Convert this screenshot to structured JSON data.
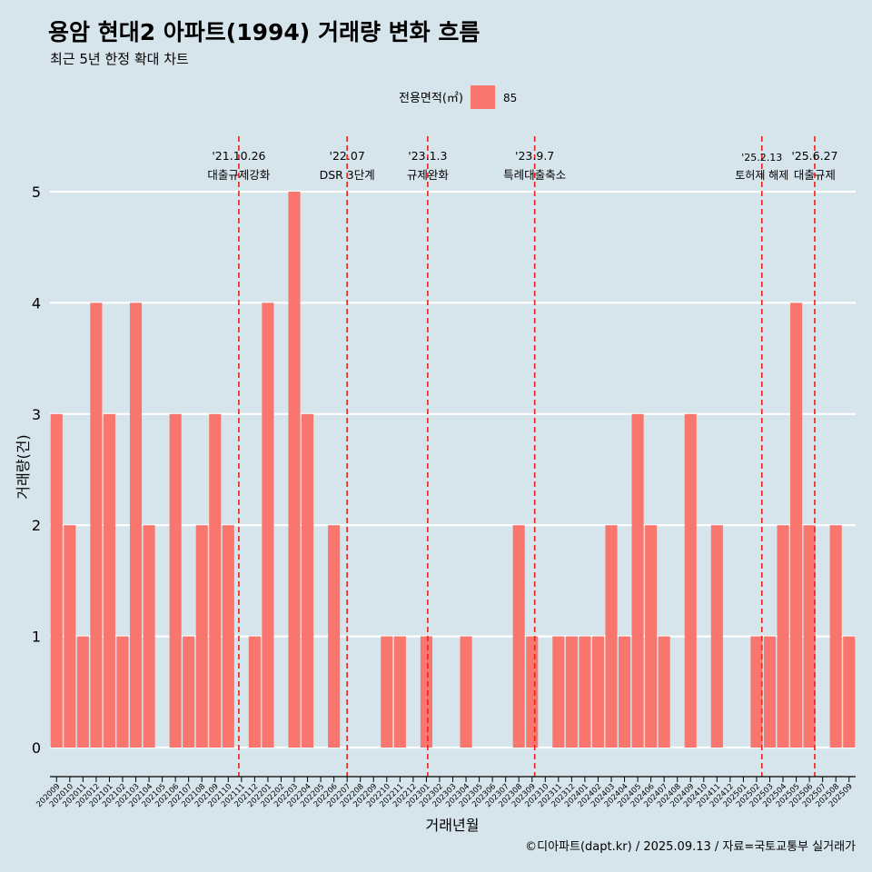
{
  "chart_data": {
    "type": "bar",
    "title": "용암 현대2 아파트(1994) 거래량 변화 흐름",
    "subtitle": "최근 5년 한정 확대 차트",
    "xlabel": "거래년월",
    "ylabel": "거래량(건)",
    "caption": "©디아파트(dapt.kr) / 2025.09.13 / 자료=국토교통부 실거래가",
    "legend": {
      "title": "전용면적(㎡)",
      "position": "top",
      "entries": [
        {
          "label": "85",
          "color": "#f8766d"
        }
      ]
    },
    "ylim": [
      0,
      5
    ],
    "yticks": [
      0,
      1,
      2,
      3,
      4,
      5
    ],
    "grid": true,
    "bar_color": "#f8766d",
    "categories": [
      "202009",
      "202010",
      "202011",
      "202012",
      "202101",
      "202102",
      "202103",
      "202104",
      "202105",
      "202106",
      "202107",
      "202108",
      "202109",
      "202110",
      "202111",
      "202112",
      "202201",
      "202202",
      "202203",
      "202204",
      "202205",
      "202206",
      "202207",
      "202208",
      "202209",
      "202210",
      "202211",
      "202212",
      "202301",
      "202302",
      "202303",
      "202304",
      "202305",
      "202306",
      "202307",
      "202308",
      "202309",
      "202310",
      "202311",
      "202312",
      "202401",
      "202402",
      "202403",
      "202404",
      "202405",
      "202406",
      "202407",
      "202408",
      "202409",
      "202410",
      "202411",
      "202412",
      "202501",
      "202502",
      "202503",
      "202504",
      "202505",
      "202506",
      "202507",
      "202508",
      "202509"
    ],
    "series": [
      {
        "values": [
          3,
          2,
          1,
          4,
          3,
          1,
          4,
          2,
          0,
          3,
          1,
          2,
          3,
          2,
          0,
          1,
          4,
          0,
          5,
          3,
          0,
          2,
          0,
          0,
          0,
          1,
          1,
          0,
          1,
          0,
          0,
          1,
          0,
          0,
          0,
          2,
          1,
          0,
          1,
          1,
          1,
          1,
          2,
          1,
          3,
          2,
          1,
          0,
          3,
          0,
          2,
          0,
          0,
          1,
          1,
          2,
          4,
          2,
          0,
          2,
          1
        ]
      }
    ],
    "annotations": [
      {
        "date": "'21.10.26",
        "label": "대출규제강화",
        "x_index": 13.8
      },
      {
        "date": "'22.07",
        "label": "DSR 3단계",
        "x_index": 22
      },
      {
        "date": "'23.1.3",
        "label": "규제완화",
        "x_index": 28.1
      },
      {
        "date": "'23.9.7",
        "label": "특례대출축소",
        "x_index": 36.2
      },
      {
        "date": "'25.2.13",
        "label": "토허제 해제",
        "x_index": 53.4
      },
      {
        "date": "'25.6.27",
        "label": "대출규제",
        "x_index": 57.4
      }
    ]
  }
}
